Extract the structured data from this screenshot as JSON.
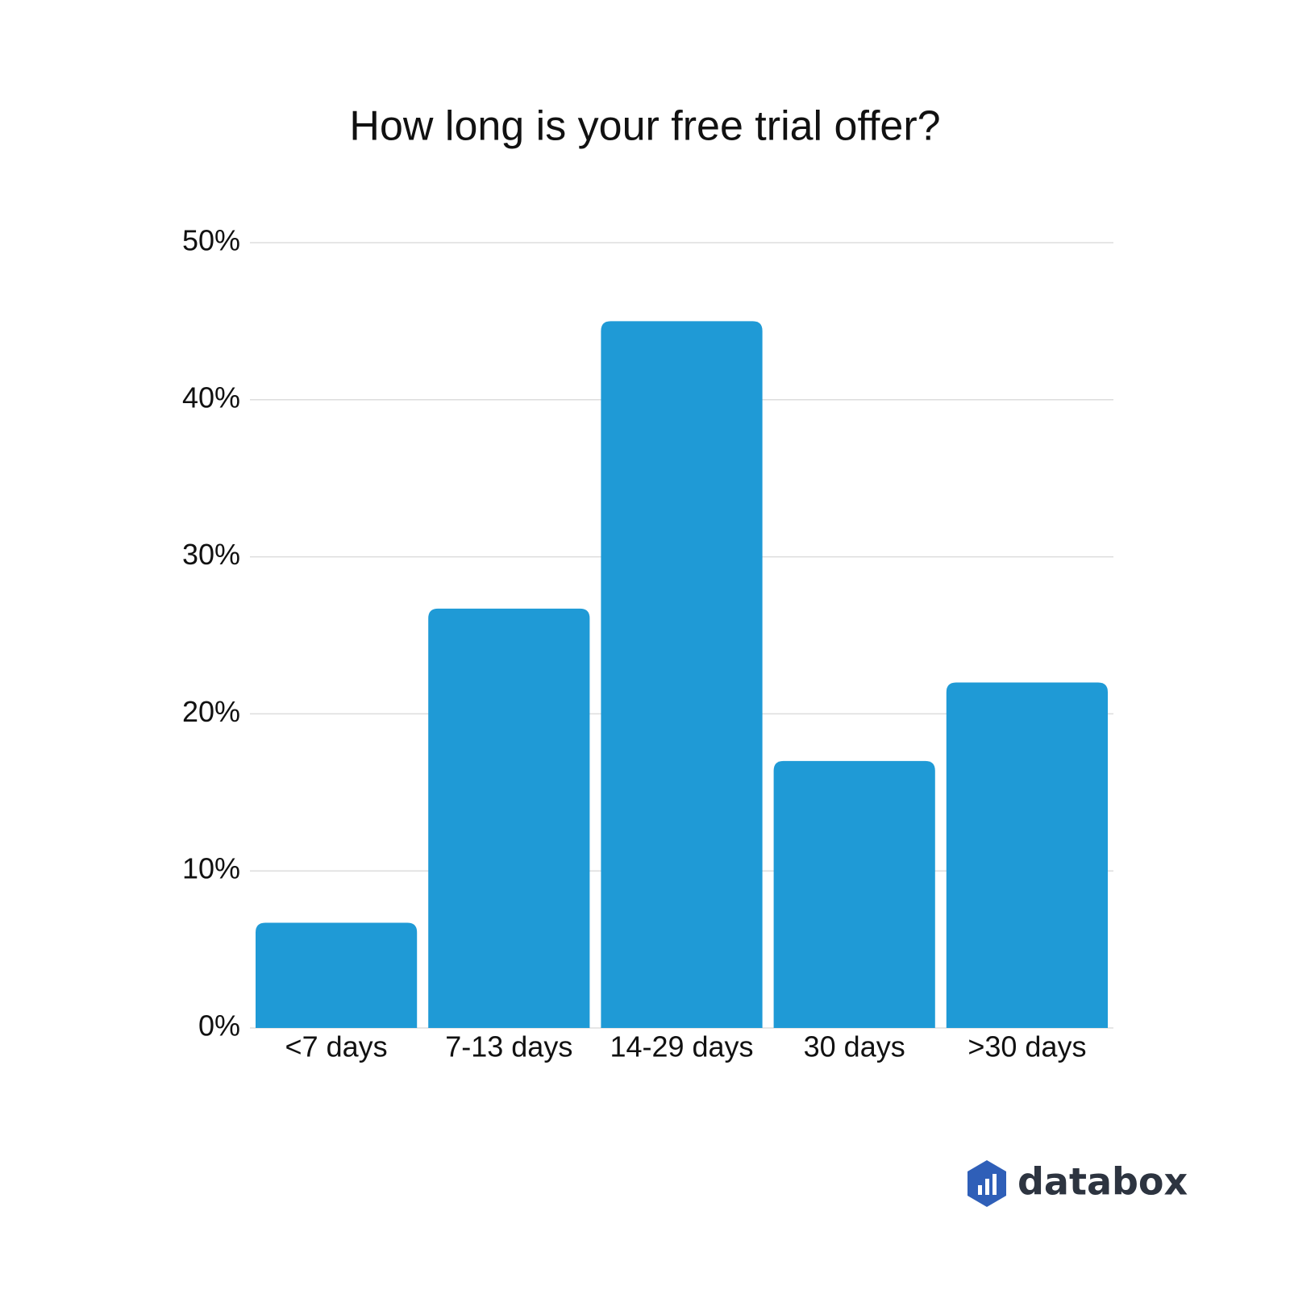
{
  "chart_data": {
    "type": "bar",
    "title": "How long is your free trial offer?",
    "categories": [
      "<7 days",
      "7-13 days",
      "14-29 days",
      "30 days",
      ">30 days"
    ],
    "values": [
      6.7,
      26.7,
      45,
      17,
      22
    ],
    "color": "#1f9ad6",
    "ylim": [
      0,
      50
    ],
    "yticks": [
      {
        "value": 0,
        "label": "0%"
      },
      {
        "value": 10,
        "label": "10%"
      },
      {
        "value": 20,
        "label": "20%"
      },
      {
        "value": 30,
        "label": "30%"
      },
      {
        "value": 40,
        "label": "40%"
      },
      {
        "value": 50,
        "label": "50%"
      }
    ],
    "grid": true
  },
  "brand": "databox"
}
